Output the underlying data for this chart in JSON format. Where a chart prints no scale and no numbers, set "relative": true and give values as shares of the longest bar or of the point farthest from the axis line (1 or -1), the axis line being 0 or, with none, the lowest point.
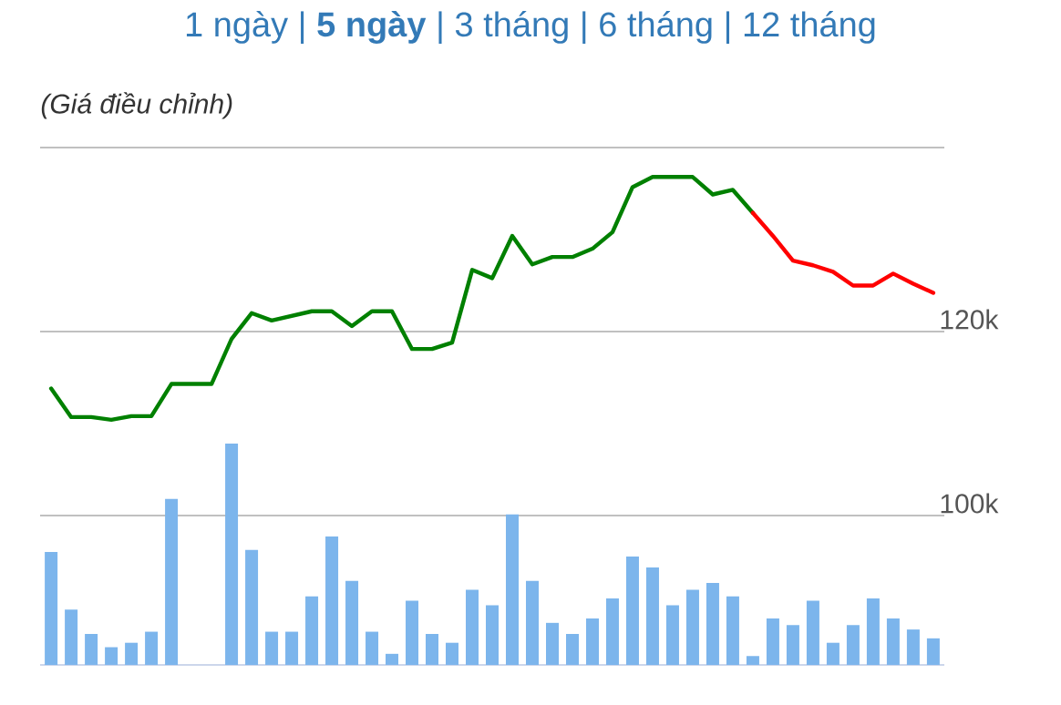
{
  "chart_data": [
    {
      "type": "line",
      "title": "(Giá điều chỉnh)",
      "annotations": [
        "1 ngày | **5 ngày** | 3 tháng | 6 tháng | 12 tháng"
      ],
      "categories": [
        null,
        null,
        null,
        null,
        null,
        null,
        null,
        null,
        null,
        null,
        null,
        null,
        null,
        null,
        null,
        null,
        null,
        null,
        null,
        null,
        null,
        null,
        null,
        null,
        null,
        null,
        null,
        null,
        null,
        null,
        null,
        null,
        null,
        null,
        null,
        null,
        null,
        null,
        null,
        null,
        null,
        null,
        null,
        null,
        null
      ],
      "series": [
        {
          "color": "#008000",
          "values": [
            113.8,
            110.7,
            110.7,
            110.4,
            110.8,
            110.8,
            114.3,
            114.3,
            114.3,
            119.2,
            122.0,
            121.2,
            121.7,
            122.2,
            122.2,
            120.6,
            122.2,
            122.2,
            118.1,
            118.1,
            118.8,
            126.7,
            125.8,
            130.4,
            127.3,
            128.1,
            128.1,
            129.0,
            130.8,
            135.7,
            136.8,
            136.8,
            136.8,
            134.9,
            135.4,
            132.9,
            null,
            null,
            null,
            null,
            null,
            null,
            null,
            null,
            null
          ]
        },
        {
          "color": "#ff0000",
          "values": [
            null,
            null,
            null,
            null,
            null,
            null,
            null,
            null,
            null,
            null,
            null,
            null,
            null,
            null,
            null,
            null,
            null,
            null,
            null,
            null,
            null,
            null,
            null,
            null,
            null,
            null,
            null,
            null,
            null,
            null,
            null,
            null,
            null,
            null,
            null,
            132.9,
            130.4,
            127.7,
            127.2,
            126.5,
            125.0,
            125.0,
            126.3,
            125.2,
            124.2
          ]
        }
      ],
      "ylim": [
        100,
        140
      ],
      "yticks": [
        {
          "value": 100,
          "label": "100k"
        },
        {
          "value": 120,
          "label": "120k"
        },
        {
          "value": 140,
          "label": null
        }
      ],
      "grid": "y"
    },
    {
      "type": "bar",
      "relative": true,
      "categories": [
        null,
        null,
        null,
        null,
        null,
        null,
        null,
        null,
        null,
        null,
        null,
        null,
        null,
        null,
        null,
        null,
        null,
        null,
        null,
        null,
        null,
        null,
        null,
        null,
        null,
        null,
        null,
        null,
        null,
        null,
        null,
        null,
        null,
        null,
        null,
        null,
        null,
        null,
        null,
        null,
        null,
        null,
        null,
        null,
        null
      ],
      "series": [
        {
          "color": "#7cb5ec",
          "values": [
            0.51,
            0.25,
            0.14,
            0.08,
            0.1,
            0.15,
            0.75,
            null,
            null,
            1.0,
            0.52,
            0.15,
            0.15,
            0.31,
            0.58,
            0.38,
            0.15,
            0.05,
            0.29,
            0.14,
            0.1,
            0.34,
            0.27,
            0.68,
            0.38,
            0.19,
            0.14,
            0.21,
            0.3,
            0.49,
            0.44,
            0.27,
            0.34,
            0.37,
            0.31,
            0.04,
            0.21,
            0.18,
            0.29,
            0.1,
            0.18,
            0.3,
            0.21,
            0.16,
            0.12
          ]
        }
      ]
    }
  ]
}
